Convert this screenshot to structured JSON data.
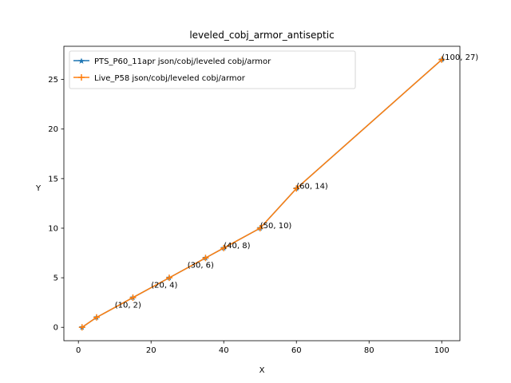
{
  "chart_data": {
    "type": "line",
    "title": "leveled_cobj_armor_antiseptic",
    "xlabel": "X",
    "ylabel": "Y",
    "xlim": [
      -4,
      105
    ],
    "ylim": [
      -1.35,
      28.35
    ],
    "xticks": [
      0,
      20,
      40,
      60,
      80,
      100
    ],
    "yticks": [
      0,
      5,
      10,
      15,
      20,
      25
    ],
    "grid": false,
    "legend_position": "top-left",
    "series": [
      {
        "name": "PTS_P60_11apr json/cobj/leveled cobj/armor",
        "color": "#1f77b4",
        "marker": "star",
        "x": [
          1,
          5,
          15,
          25,
          35,
          40,
          50,
          60,
          100
        ],
        "y": [
          0,
          1,
          3,
          5,
          7,
          8,
          10,
          14,
          27
        ]
      },
      {
        "name": "Live_P58 json/cobj/leveled cobj/armor",
        "color": "#ff7f0e",
        "marker": "plus",
        "x": [
          1,
          5,
          15,
          25,
          35,
          40,
          50,
          60,
          100
        ],
        "y": [
          0,
          1,
          3,
          5,
          7,
          8,
          10,
          14,
          27
        ]
      }
    ],
    "annotations": [
      {
        "text": "(10, 2)",
        "x": 10,
        "y": 2
      },
      {
        "text": "(20, 4)",
        "x": 20,
        "y": 4
      },
      {
        "text": "(30, 6)",
        "x": 30,
        "y": 6
      },
      {
        "text": "(40, 8)",
        "x": 40,
        "y": 8
      },
      {
        "text": "(50, 10)",
        "x": 50,
        "y": 10
      },
      {
        "text": "(60, 14)",
        "x": 60,
        "y": 14
      },
      {
        "text": "(100, 27)",
        "x": 100,
        "y": 27
      }
    ]
  }
}
